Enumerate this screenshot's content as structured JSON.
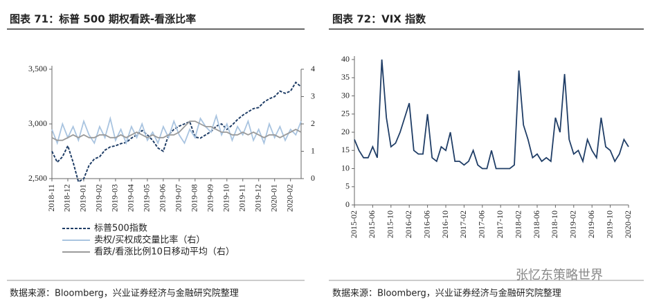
{
  "chart_data": [
    {
      "type": "line",
      "title": "图表 71：标普 500 期权看跌-看涨比率",
      "source": "数据来源：Bloomberg，兴业证券经济与金融研究院整理",
      "categories": [
        "2018-11",
        null,
        null,
        "2018-12",
        null,
        null,
        "2019-01",
        null,
        null,
        "2019-02",
        null,
        null,
        "2019-03",
        null,
        null,
        "2019-04",
        null,
        null,
        "2019-05",
        null,
        null,
        "2019-06",
        null,
        null,
        "2019-07",
        null,
        null,
        "2019-08",
        null,
        null,
        "2019-09",
        null,
        null,
        "2019-10",
        null,
        null,
        "2019-11",
        null,
        null,
        "2019-12",
        null,
        null,
        "2020-01",
        null,
        null,
        "2020-02",
        null,
        null
      ],
      "ylim": [
        2500,
        3500
      ],
      "yticks": [
        {
          "value": 2500,
          "label": "2,500"
        },
        {
          "value": 3000,
          "label": "3,000"
        },
        {
          "value": 3500,
          "label": "3,500"
        }
      ],
      "y2lim": [
        0,
        4
      ],
      "y2ticks": [
        0,
        1,
        2,
        3,
        4
      ],
      "legend": "bottom",
      "series": [
        {
          "name": "标普500指数",
          "color": "#1f3d66",
          "dash": true,
          "values": [
            2750,
            2650,
            2700,
            2800,
            2650,
            2470,
            2500,
            2620,
            2680,
            2700,
            2760,
            2790,
            2800,
            2820,
            2830,
            2870,
            2900,
            2940,
            2900,
            2850,
            2780,
            2750,
            2900,
            2950,
            2980,
            3000,
            3020,
            2880,
            2870,
            2900,
            2930,
            2980,
            3000,
            2950,
            2990,
            3040,
            3080,
            3110,
            3140,
            3150,
            3200,
            3230,
            3250,
            3300,
            3280,
            3300,
            3380,
            3340
          ]
        },
        {
          "name": "卖权/买权成交量比率（右）",
          "color": "#a9c4e0",
          "axis": "y2",
          "values": [
            1.8,
            1.3,
            2.0,
            1.5,
            1.9,
            1.4,
            2.1,
            1.6,
            1.3,
            1.9,
            1.5,
            2.2,
            1.4,
            1.8,
            1.3,
            1.9,
            1.5,
            2.0,
            1.4,
            1.7,
            1.3,
            1.9,
            1.5,
            2.1,
            1.6,
            1.3,
            1.8,
            1.5,
            2.2,
            1.9,
            1.7,
            2.3,
            1.6,
            2.0,
            1.4,
            1.9,
            1.6,
            2.1,
            1.4,
            1.8,
            1.3,
            2.0,
            1.5,
            1.9,
            1.4,
            1.8,
            1.6,
            2.1
          ]
        },
        {
          "name": "看跌/看涨比例10日移动平均（右）",
          "color": "#9a9a9a",
          "axis": "y2",
          "values": [
            1.5,
            1.4,
            1.4,
            1.5,
            1.6,
            1.5,
            1.6,
            1.5,
            1.5,
            1.6,
            1.6,
            1.5,
            1.5,
            1.6,
            1.5,
            1.6,
            1.7,
            1.6,
            1.5,
            1.6,
            1.5,
            1.5,
            1.6,
            1.6,
            1.7,
            1.9,
            2.1,
            2.1,
            2.0,
            1.9,
            1.9,
            1.8,
            1.7,
            1.7,
            1.6,
            1.6,
            1.7,
            1.6,
            1.7,
            1.6,
            1.5,
            1.6,
            1.6,
            1.5,
            1.6,
            1.7,
            1.8,
            1.7
          ]
        }
      ]
    },
    {
      "type": "line",
      "title": "图表 72：VIX 指数",
      "source": "数据来源：Bloomberg，兴业证券经济与金融研究院整理",
      "watermark": "张忆东策略世界",
      "categories": [
        "2015-02",
        null,
        null,
        null,
        "2015-06",
        null,
        null,
        null,
        "2015-10",
        null,
        null,
        null,
        "2016-02",
        null,
        null,
        null,
        "2016-06",
        null,
        null,
        null,
        "2016-10",
        null,
        null,
        null,
        "2017-02",
        null,
        null,
        null,
        "2017-06",
        null,
        null,
        null,
        "2017-10",
        null,
        null,
        null,
        "2018-02",
        null,
        null,
        null,
        "2018-06",
        null,
        null,
        null,
        "2018-10",
        null,
        null,
        null,
        "2019-02",
        null,
        null,
        null,
        "2019-06",
        null,
        null,
        null,
        "2019-10",
        null,
        null,
        null,
        "2020-02"
      ],
      "ylim": [
        0,
        40
      ],
      "yticks": [
        0,
        5,
        10,
        15,
        20,
        25,
        30,
        35,
        40
      ],
      "series": [
        {
          "name": "VIX",
          "color": "#1f3d66",
          "values": [
            18,
            15,
            13,
            13,
            16,
            13,
            40,
            24,
            16,
            17,
            20,
            24,
            28,
            15,
            14,
            14,
            25,
            13,
            12,
            16,
            15,
            20,
            12,
            12,
            11,
            12,
            15,
            11,
            10,
            10,
            15,
            10,
            10,
            10,
            10,
            11,
            37,
            22,
            18,
            13,
            14,
            12,
            13,
            12,
            24,
            20,
            36,
            18,
            14,
            15,
            12,
            18,
            15,
            13,
            24,
            16,
            15,
            12,
            14,
            18,
            16
          ]
        }
      ]
    }
  ]
}
